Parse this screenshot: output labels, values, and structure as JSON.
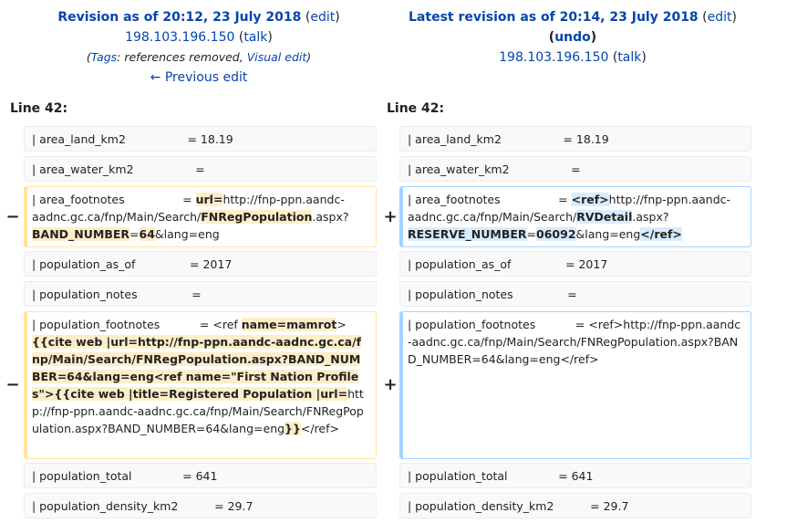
{
  "left_header": {
    "title": "Revision as of 20:12, 23 July 2018",
    "edit": "edit",
    "user": "198.103.196.150",
    "talk": "talk",
    "tags_label": "Tags",
    "tags_value": ": references removed, ",
    "visual_edit": "Visual edit",
    "prev_edit": "← Previous edit"
  },
  "right_header": {
    "title": "Latest revision as of 20:14, 23 July 2018",
    "edit": "edit",
    "undo": "undo",
    "user": "198.103.196.150",
    "talk": "talk"
  },
  "line_label": "Line 42:",
  "markers": {
    "minus": "−",
    "plus": "+"
  },
  "rows": {
    "area_land": "| area_land_km2                 = 18.19",
    "area_water": "| area_water_km2                 =",
    "population_as_of": "| population_as_of               = 2017",
    "population_notes": "| population_notes               =",
    "population_total": "| population_total              = 641",
    "population_density": "| population_density_km2          = 29.7"
  },
  "left_area_footnotes": {
    "a": "| area_footnotes                = ",
    "b": "url=",
    "c": "http://fnp-ppn.aandc-aadnc.gc.ca/fnp/Main/Search/",
    "d": "FNRegPopulation",
    "e": ".aspx?",
    "f": "BAND_NUMBER",
    "g": "=",
    "h": "64",
    "i": "&lang=eng"
  },
  "right_area_footnotes": {
    "a": "| area_footnotes                = ",
    "b": "<ref>",
    "c": "http://fnp-ppn.aandc-aadnc.gc.ca/fnp/Main/Search/",
    "d": "RVDetail",
    "e": ".aspx?",
    "f": "RESERVE_NUMBER",
    "g": "=",
    "h": "06092",
    "i": "&lang=eng",
    "j": "</ref>"
  },
  "left_pop_footnotes": {
    "a": "| population_footnotes           = <ref ",
    "b": "name=mamrot",
    "c": ">",
    "d": "{{cite web |url=http://fnp-ppn.aandc-aadnc.gc.ca/fnp/Main/Search/FNRegPopulation.aspx?BAND_NUMBER=64&lang=eng<ref name=\"First Nation Profiles\">{{cite web |title=Registered Population |url=",
    "e": "http://fnp-ppn.aandc-aadnc.gc.ca/fnp/Main/Search/FNRegPopulation.aspx?BAND_NUMBER=64&lang=eng",
    "f": "}}",
    "g": "</ref>"
  },
  "right_pop_footnotes": "| population_footnotes           = <ref>http://fnp-ppn.aandc-aadnc.gc.ca/fnp/Main/Search/FNRegPopulation.aspx?BAND_NUMBER=64&lang=eng</ref>"
}
